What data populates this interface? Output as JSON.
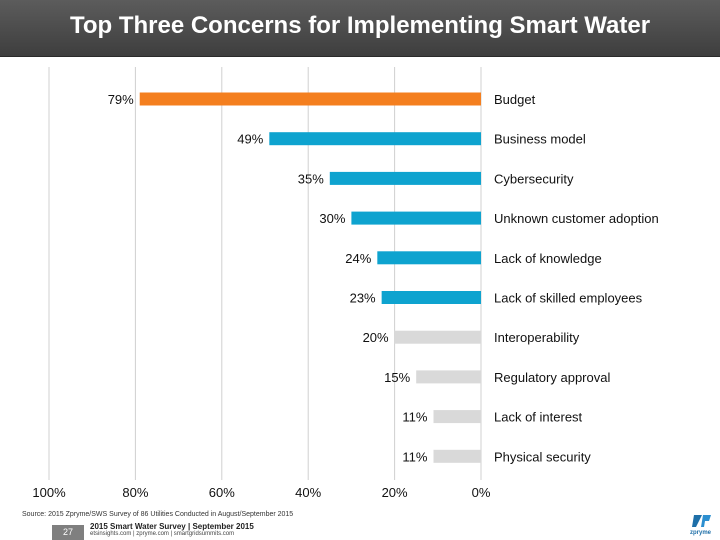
{
  "title": "Top Three Concerns for Implementing Smart Water",
  "chart_data": {
    "type": "bar",
    "orientation": "horizontal",
    "direction": "right-to-left",
    "categories": [
      "Budget",
      "Business model",
      "Cybersecurity",
      "Unknown customer adoption",
      "Lack of knowledge",
      "Lack of skilled employees",
      "Interoperability",
      "Regulatory approval",
      "Lack of interest",
      "Physical security"
    ],
    "values": [
      79,
      49,
      35,
      30,
      24,
      23,
      20,
      15,
      11,
      11
    ],
    "value_labels": [
      "79%",
      "49%",
      "35%",
      "30%",
      "24%",
      "23%",
      "20%",
      "15%",
      "11%",
      "11%"
    ],
    "bar_groups": [
      "top",
      "highlight",
      "highlight",
      "highlight",
      "highlight",
      "highlight",
      "other",
      "other",
      "other",
      "other"
    ],
    "colors": {
      "top": "#f47f1f",
      "highlight": "#0ea3cf",
      "other": "#d9d9d9",
      "grid": "#d0d0d0"
    },
    "xlim": [
      0,
      100
    ],
    "ticks": [
      100,
      80,
      60,
      40,
      20,
      0
    ],
    "tick_labels": [
      "100%",
      "80%",
      "60%",
      "40%",
      "20%",
      "0%"
    ],
    "grid": true,
    "xlabel": "",
    "ylabel": ""
  },
  "source": "Source: 2015 Zpryme/SWS Survey of 86 Utilities Conducted in August/September 2015",
  "footer": {
    "page_number": "27",
    "report_title": "2015 Smart Water Survey | September 2015",
    "sites": "etsinsights.com | zpryme.com | smartgridsummits.com",
    "logo_text": "zpryme"
  }
}
